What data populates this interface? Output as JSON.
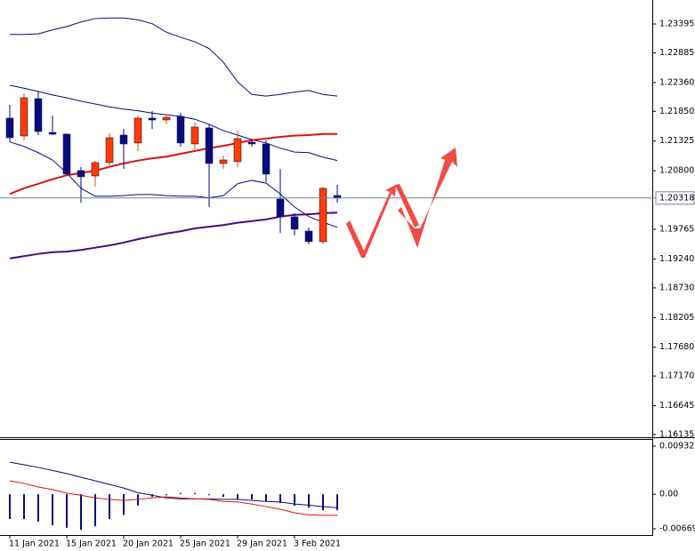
{
  "chart_data": [
    {
      "type": "candlestick",
      "open": [
        1.2173,
        1.21415,
        1.22075,
        1.21478,
        1.21447,
        1.20803,
        1.20708,
        1.20944,
        1.21431,
        1.2129,
        1.2173,
        1.21698,
        1.21761,
        1.21274,
        1.21557,
        1.20928,
        1.2096,
        1.21305,
        1.21274,
        1.203,
        1.19986,
        1.19734,
        1.19546,
        1.20363
      ],
      "high": [
        1.21965,
        1.22169,
        1.22201,
        1.21777,
        1.21462,
        1.20866,
        1.20975,
        1.21462,
        1.21541,
        1.21777,
        1.21855,
        1.21808,
        1.21824,
        1.21651,
        1.2162,
        1.2107,
        1.2151,
        1.21368,
        1.21337,
        1.20834,
        1.20049,
        1.19797,
        1.2052,
        1.20551
      ],
      "low": [
        1.21305,
        1.21337,
        1.21431,
        1.21431,
        1.20724,
        1.20237,
        1.2052,
        1.20897,
        1.20834,
        1.21148,
        1.21541,
        1.2162,
        1.21227,
        1.2118,
        1.20159,
        1.20834,
        1.20866,
        1.21227,
        1.20598,
        1.19703,
        1.19656,
        1.19499,
        1.19499,
        1.20237
      ],
      "close": [
        1.21384,
        1.22091,
        1.21494,
        1.21447,
        1.2074,
        1.20693,
        1.20944,
        1.21384,
        1.21274,
        1.2173,
        1.21698,
        1.21745,
        1.2129,
        1.21572,
        1.20928,
        1.20991,
        1.21368,
        1.21274,
        1.2074,
        1.19986,
        1.19766,
        1.19546,
        1.20488,
        1.20316
      ],
      "up_color": "#ff3c0a",
      "down_color": "#0a0a78",
      "lines": [
        {
          "color": "#0a0a78",
          "width": 1,
          "values": [
            1.2321,
            1.2321,
            1.2322,
            1.2329,
            1.2335,
            1.2343,
            1.2349,
            1.235,
            1.235,
            1.2347,
            1.234,
            1.2325,
            1.2316,
            1.2308,
            1.2296,
            1.2272,
            1.2237,
            1.2215,
            1.2212,
            1.2215,
            1.2219,
            1.2222,
            1.2215,
            1.2212
          ]
        },
        {
          "color": "#0a0a78",
          "width": 1,
          "values": [
            1.2231,
            1.2226,
            1.222,
            1.2214,
            1.2209,
            1.2203,
            1.2198,
            1.2193,
            1.2189,
            1.2186,
            1.2182,
            1.2179,
            1.2176,
            1.2171,
            1.2162,
            1.2151,
            1.2143,
            1.2135,
            1.2129,
            1.212,
            1.2113,
            1.2112,
            1.2104,
            1.2098
          ]
        },
        {
          "color": "#0a0a78",
          "width": 1,
          "values": [
            1.2131,
            1.2123,
            1.2112,
            1.2099,
            1.2076,
            1.2049,
            1.2035,
            1.2035,
            1.2036,
            1.2038,
            1.2038,
            1.2036,
            1.2035,
            1.2035,
            1.2032,
            1.2036,
            1.2057,
            1.2063,
            1.2058,
            1.2039,
            1.2016,
            1.1999,
            1.1989,
            1.198
          ]
        },
        {
          "color": "#e01010",
          "width": 2,
          "values": [
            1.2039,
            1.2049,
            1.2057,
            1.2065,
            1.2072,
            1.2076,
            1.208,
            1.2087,
            1.2093,
            1.2098,
            1.2102,
            1.2105,
            1.211,
            1.2115,
            1.212,
            1.2124,
            1.2129,
            1.2134,
            1.2137,
            1.214,
            1.2142,
            1.2143,
            1.2145,
            1.2145
          ]
        },
        {
          "color": "#4b0a7a",
          "width": 2,
          "values": [
            1.1925,
            1.1929,
            1.1933,
            1.1936,
            1.1937,
            1.194,
            1.1944,
            1.1948,
            1.1953,
            1.1959,
            1.1964,
            1.1969,
            1.1973,
            1.1978,
            1.1981,
            1.1984,
            1.1988,
            1.1991,
            1.1994,
            1.1999,
            1.2002,
            1.2003,
            1.2005,
            1.2006
          ]
        }
      ],
      "last_price": 1.20318,
      "ylim": [
        1.16088,
        1.23819
      ],
      "yticks": [
        1.23395,
        1.22885,
        {
          "value": 1.2236,
          "label": "1.22360"
        },
        {
          "value": 1.2185,
          "label": "1.21850"
        },
        1.21325,
        {
          "value": 1.208,
          "label": "1.20800"
        },
        1.19765,
        {
          "value": 1.1924,
          "label": "1.19240"
        },
        {
          "value": 1.1873,
          "label": "1.18730"
        },
        1.18205,
        {
          "value": 1.1768,
          "label": "1.17680"
        },
        {
          "value": 1.1717,
          "label": "1.17170"
        },
        1.16645,
        1.16135
      ]
    },
    {
      "type": "macd",
      "categories": [
        "11 Jan 2021",
        null,
        null,
        null,
        "15 Jan 2021",
        null,
        null,
        null,
        "20 Jan 2021",
        null,
        null,
        null,
        "25 Jan 2021",
        null,
        null,
        null,
        "29 Jan 2021",
        null,
        null,
        null,
        "3 Feb 2021",
        null,
        null,
        null
      ],
      "histogram": [
        -0.0048,
        -0.0048,
        -0.0053,
        -0.006,
        -0.0065,
        -0.0069,
        -0.0062,
        -0.0048,
        -0.004,
        -0.0022,
        -0.0005,
        -0.0002,
        0.0003,
        0.0003,
        -0.0002,
        -0.0005,
        -0.0009,
        -0.001,
        -0.0014,
        -0.0017,
        -0.0022,
        -0.0026,
        -0.0031,
        -0.0031
      ],
      "histogram_color": "#0a0a78",
      "series": [
        {
          "color": "#0a0a78",
          "values": [
            0.0062,
            0.0057,
            0.0052,
            0.0046,
            0.004,
            0.0033,
            0.0026,
            0.0019,
            0.0012,
            0.0003,
            -0.0002,
            -0.0007,
            -0.0009,
            -0.0009,
            -0.0009,
            -0.001,
            -0.001,
            -0.0012,
            -0.0014,
            -0.0015,
            -0.0019,
            -0.0021,
            -0.0024,
            -0.0026
          ]
        },
        {
          "color": "#e01010",
          "values": [
            0.0026,
            0.0021,
            0.0014,
            0.0009,
            0.0002,
            -0.0002,
            -0.0007,
            -0.001,
            -0.0012,
            -0.001,
            -0.0007,
            -0.0005,
            -0.0007,
            -0.0009,
            -0.001,
            -0.0014,
            -0.0015,
            -0.0019,
            -0.0024,
            -0.0029,
            -0.0036,
            -0.004,
            -0.0041,
            -0.0041
          ]
        }
      ],
      "ylim": [
        -0.0079,
        0.0107
      ],
      "yticks": [
        0.009322,
        {
          "value": 0,
          "label": "0.00"
        },
        -0.006691
      ]
    }
  ]
}
